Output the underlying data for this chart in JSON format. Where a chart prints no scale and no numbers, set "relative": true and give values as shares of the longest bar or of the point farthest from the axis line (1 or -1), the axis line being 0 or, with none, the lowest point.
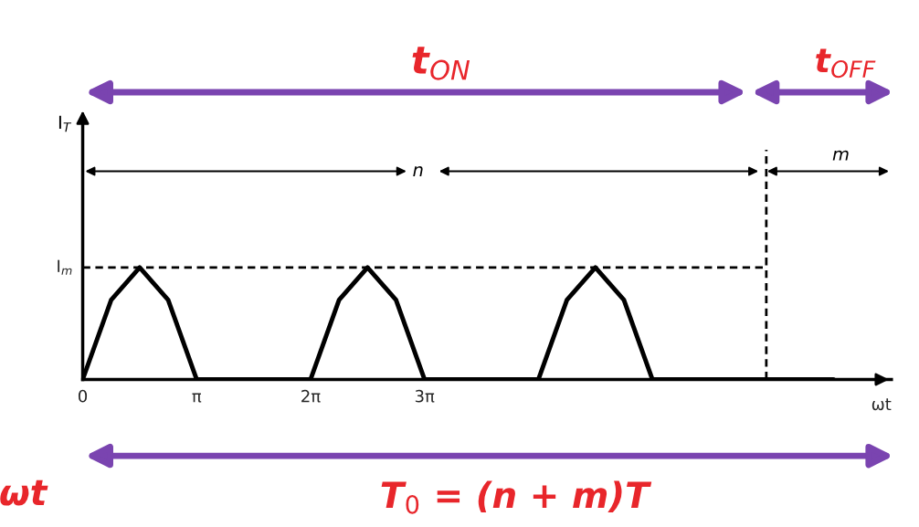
{
  "chart_data": {
    "type": "line",
    "xlabel": "ωt",
    "relative": true,
    "annotations": [
      "t$_{ON}$",
      "t$_{OFF}$",
      "n",
      "m",
      "T$_{0}$ = (n + m)T",
      "ωt",
      "I$_{T}$"
    ],
    "series": [
      {
        "color": "#000000",
        "x": [
          0,
          0.785,
          1.571,
          2.356,
          3.142,
          6.283,
          7.069,
          7.854,
          8.639,
          9.425,
          12.566,
          13.352,
          14.137,
          14.923,
          15.708,
          20.7
        ],
        "values": [
          0,
          0.71,
          1,
          0.71,
          0,
          0,
          0.71,
          1,
          0.71,
          0,
          0,
          0.71,
          1,
          0.71,
          0,
          0
        ]
      }
    ],
    "xlim": [
      0,
      22.3
    ],
    "xticks": [
      0,
      {
        "value": 3.142,
        "label": "π"
      },
      {
        "value": 6.283,
        "label": "2π"
      },
      {
        "value": 9.425,
        "label": "3π"
      }
    ],
    "ref_lines": [
      {
        "axis": "y",
        "value": 1,
        "label": "I$_{m}$",
        "line_style": "dashed",
        "color": "#000000"
      },
      {
        "axis": "x",
        "value": 18.85,
        "line_style": "dashed",
        "color": "#000000"
      }
    ]
  }
}
